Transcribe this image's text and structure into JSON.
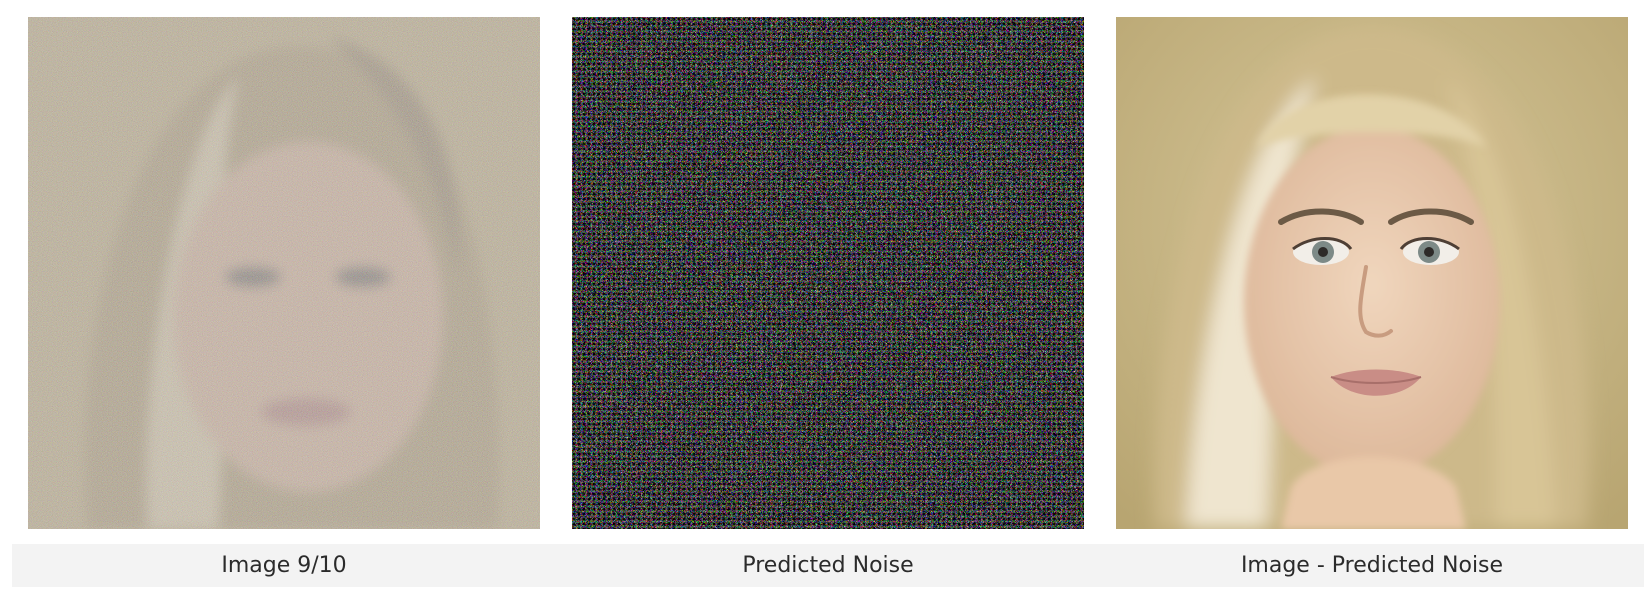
{
  "panels": [
    {
      "image": "noisy-face-image",
      "caption": "Image 9/10"
    },
    {
      "image": "predicted-noise-image",
      "caption": "Predicted Noise"
    },
    {
      "image": "denoised-face-image",
      "caption": "Image - Predicted Noise"
    }
  ],
  "colors": {
    "caption_background": "#f3f3f3",
    "caption_text": "#2b2b2b",
    "face_background": "#c9b783",
    "hair": "#d9c79a",
    "skin": "#e9c8a8"
  }
}
